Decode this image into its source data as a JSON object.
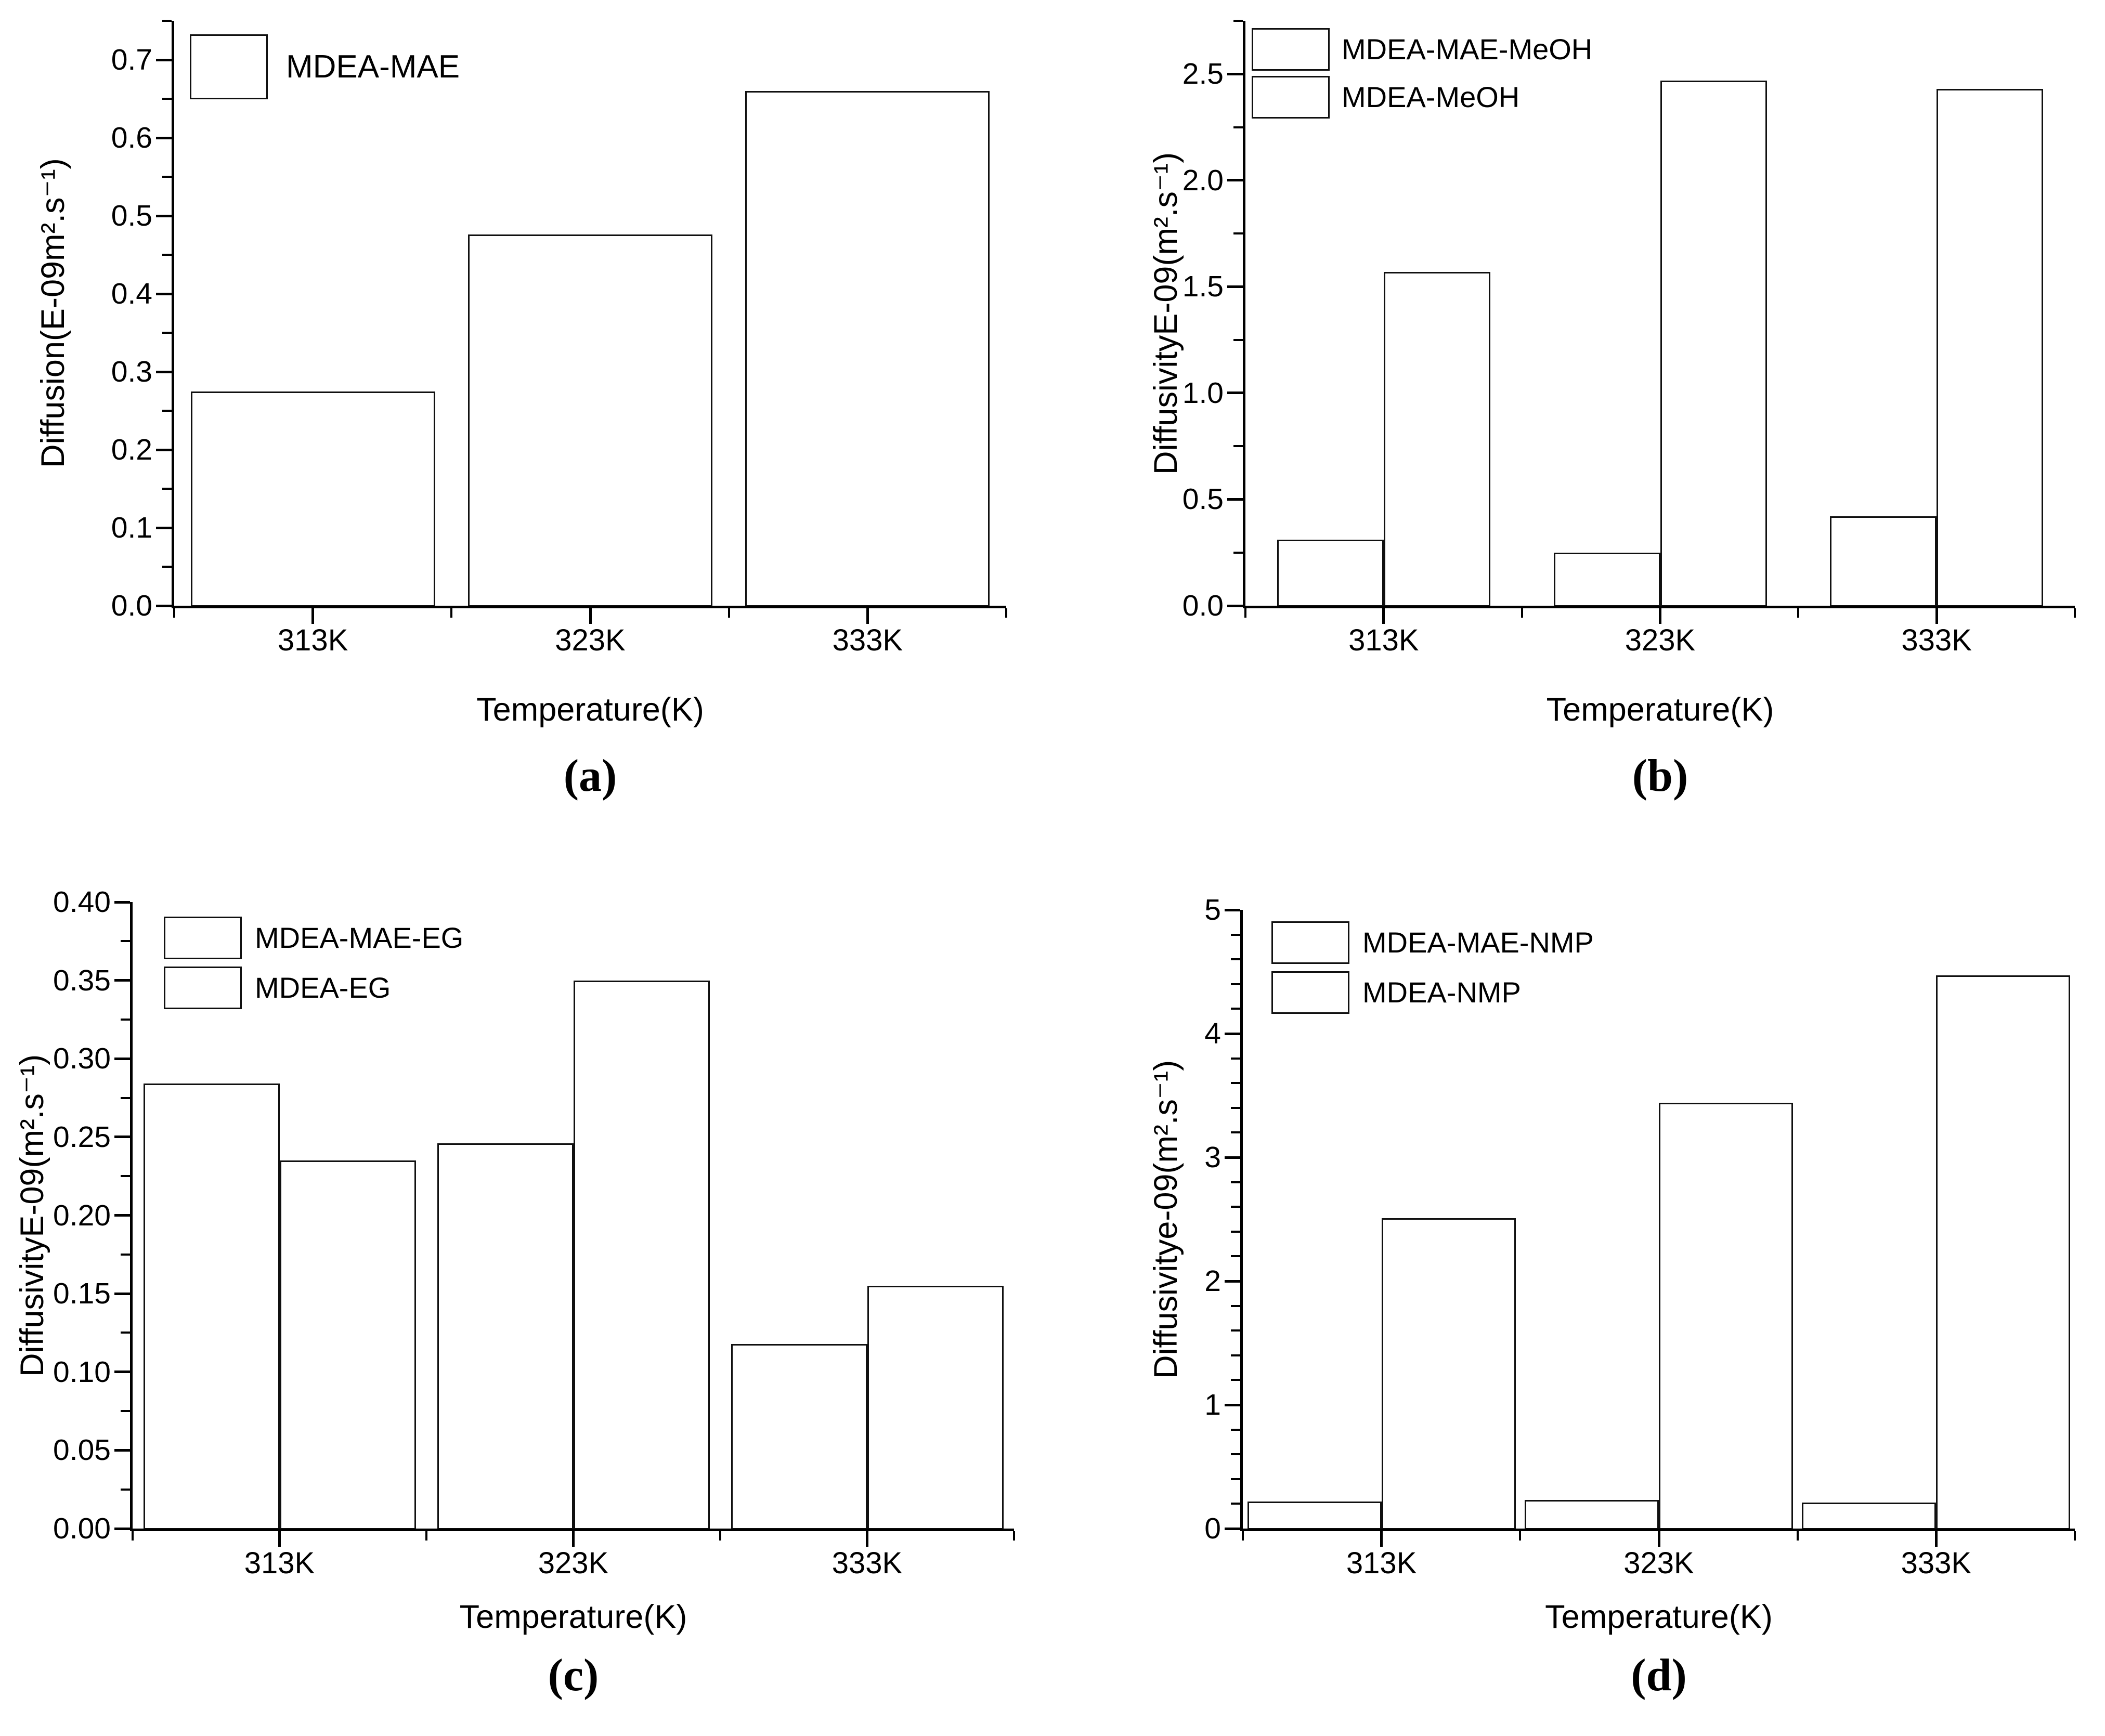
{
  "figure": {
    "background": "#ffffff",
    "description_visible_panels": [
      "a",
      "b",
      "c",
      "d"
    ]
  },
  "chart_data": [
    {
      "id": "a",
      "type": "bar",
      "caption": "(a)",
      "xlabel": "Temperature(K)",
      "ylabel": "Diffusion(E-09m².s⁻¹)",
      "categories": [
        "313K",
        "323K",
        "333K"
      ],
      "series": [
        {
          "name": "MDEA-MAE",
          "fill": "#D5C2DE",
          "hatch": "vertical-stripes",
          "hatch_color": "#4A4254",
          "values": [
            0.275,
            0.476,
            0.66
          ]
        }
      ],
      "ylim": [
        0,
        0.75
      ],
      "yticks": [
        "0.0",
        "0.1",
        "0.2",
        "0.3",
        "0.4",
        "0.5",
        "0.6",
        "0.7"
      ],
      "minor_step": 0.05,
      "legend_position": "top-left",
      "grid": false
    },
    {
      "id": "b",
      "type": "bar",
      "caption": "(b)",
      "xlabel": "Temperature(K)",
      "ylabel": "DiffusivityE-09(m².s⁻¹)",
      "categories": [
        "313K",
        "323K",
        "333K"
      ],
      "series": [
        {
          "name": "MDEA-MAE-MeOH",
          "fill": "#AD8365",
          "hatch": "fine-dots",
          "hatch_color": "#5F3A1E",
          "values": [
            0.31,
            0.25,
            0.42
          ]
        },
        {
          "name": "MDEA-MeOH",
          "fill": "#CE650B",
          "hatch": "fine-dots",
          "hatch_color": "#7E3D04",
          "values": [
            1.57,
            2.47,
            2.43
          ]
        }
      ],
      "ylim": [
        0,
        2.75
      ],
      "yticks": [
        "0.0",
        "0.5",
        "1.0",
        "1.5",
        "2.0",
        "2.5"
      ],
      "minor_step": 0.25,
      "legend_position": "top-left",
      "grid": false
    },
    {
      "id": "c",
      "type": "bar",
      "caption": "(c)",
      "xlabel": "Temperature(K)",
      "ylabel": "DiffusivityE-09(m².s⁻¹)",
      "categories": [
        "313K",
        "323K",
        "333K"
      ],
      "series": [
        {
          "name": "MDEA-MAE-EG",
          "fill": "#6F6F6F",
          "hatch": "crosshatch",
          "hatch_color": "#0E0E0E",
          "values": [
            0.284,
            0.246,
            0.118
          ]
        },
        {
          "name": "MDEA-EG",
          "fill": "#F9CFA2",
          "hatch": "crosshatch",
          "hatch_color": "#1A1410",
          "values": [
            0.235,
            0.35,
            0.155
          ]
        }
      ],
      "ylim": [
        0,
        0.4
      ],
      "yticks": [
        "0.00",
        "0.05",
        "0.10",
        "0.15",
        "0.20",
        "0.25",
        "0.30",
        "0.35",
        "0.40"
      ],
      "minor_step": 0.025,
      "legend_position": "top-left",
      "grid": false
    },
    {
      "id": "d",
      "type": "bar",
      "caption": "(d)",
      "xlabel": "Temperature(K)",
      "ylabel": "Diffusivitye-09(m².s⁻¹)",
      "categories": [
        "313K",
        "323K",
        "333K"
      ],
      "series": [
        {
          "name": "MDEA-MAE-NMP",
          "fill": "#8CDBA3",
          "hatch": "diagonal-stripes-fine",
          "hatch_color": "#14241A",
          "values": [
            0.22,
            0.23,
            0.21
          ]
        },
        {
          "name": "MDEA-NMP",
          "fill": "#CCBBDD",
          "hatch": "diagonal-stripes",
          "hatch_color": "#3A3246",
          "values": [
            2.51,
            3.44,
            4.47
          ]
        }
      ],
      "ylim": [
        0,
        5
      ],
      "yticks": [
        "0",
        "1",
        "2",
        "3",
        "4",
        "5"
      ],
      "minor_step": 0.2,
      "legend_position": "top-left",
      "grid": false
    }
  ]
}
